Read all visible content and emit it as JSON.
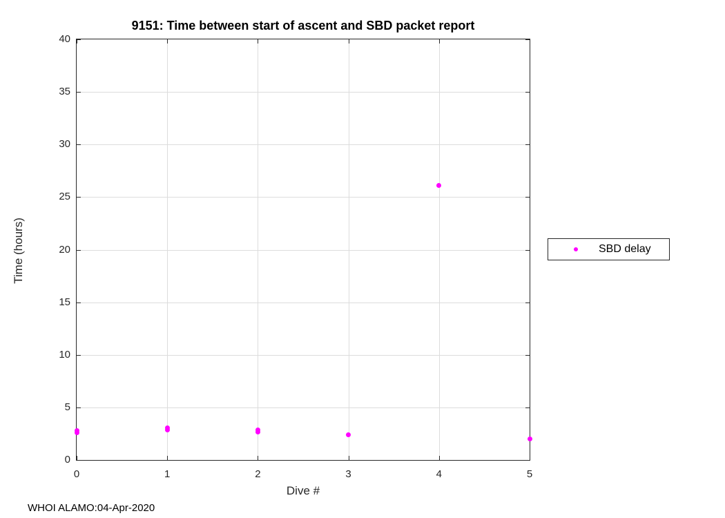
{
  "figure": {
    "title": "9151: Time between start of ascent and SBD packet report",
    "footer": "WHOI ALAMO:04-Apr-2020"
  },
  "chart_data": {
    "type": "scatter",
    "title": "9151: Time between start of ascent and SBD packet report",
    "xlabel": "Dive #",
    "ylabel": "Time (hours)",
    "xlim": [
      0,
      5
    ],
    "ylim": [
      0,
      40
    ],
    "xticks": [
      0,
      1,
      2,
      3,
      4,
      5
    ],
    "yticks": [
      0,
      5,
      10,
      15,
      20,
      25,
      30,
      35,
      40
    ],
    "grid": true,
    "legend": {
      "position": "outside-right",
      "entries": [
        {
          "label": "SBD delay",
          "marker": "dot",
          "color": "#ff00ff"
        }
      ]
    },
    "series": [
      {
        "name": "SBD delay",
        "color": "#ff00ff",
        "marker": "point",
        "points": [
          {
            "x": 0,
            "y": 2.6
          },
          {
            "x": 0,
            "y": 2.78
          },
          {
            "x": 1,
            "y": 2.85
          },
          {
            "x": 1,
            "y": 3.05
          },
          {
            "x": 2,
            "y": 2.65
          },
          {
            "x": 2,
            "y": 2.85
          },
          {
            "x": 3,
            "y": 2.4
          },
          {
            "x": 4,
            "y": 26.1
          },
          {
            "x": 5,
            "y": 2.0
          }
        ]
      }
    ],
    "annotation": "WHOI ALAMO:04-Apr-2020"
  },
  "colors": {
    "marker": "#ff00ff",
    "grid": "#dcdcdc",
    "axis": "#262626",
    "background": "#ffffff"
  }
}
